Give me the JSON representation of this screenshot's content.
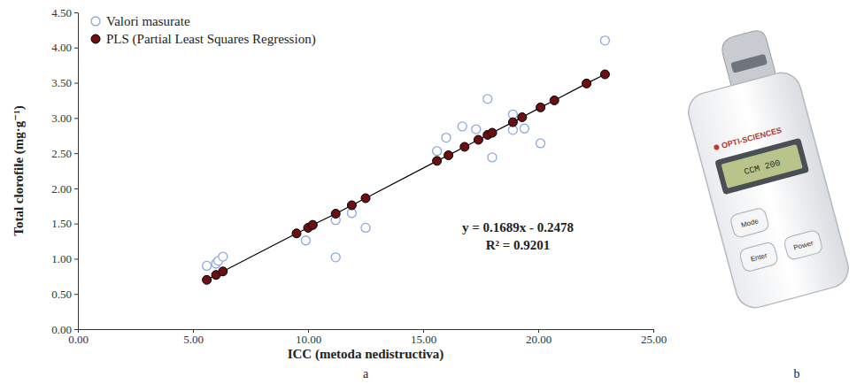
{
  "chart_data": {
    "type": "scatter",
    "x_label": "ICC (metoda nedistructiva)",
    "y_label": "Total clorofile (mg·g⁻¹)",
    "xlim": [
      0,
      25
    ],
    "xticks": [
      {
        "value": 0,
        "label": "0.00"
      },
      {
        "value": 5,
        "label": "5.00"
      },
      {
        "value": 10,
        "label": "10.00"
      },
      {
        "value": 15,
        "label": "15.00"
      },
      {
        "value": 20,
        "label": "20.00"
      },
      {
        "value": 25,
        "label": "25.00"
      }
    ],
    "ylim": [
      0,
      4.5
    ],
    "yticks": [
      {
        "value": 0,
        "label": "0.00"
      },
      {
        "value": 0.5,
        "label": "0.50"
      },
      {
        "value": 1,
        "label": "1.00"
      },
      {
        "value": 1.5,
        "label": "1.50"
      },
      {
        "value": 2,
        "label": "2.00"
      },
      {
        "value": 2.5,
        "label": "2.50"
      },
      {
        "value": 3,
        "label": "3.00"
      },
      {
        "value": 3.5,
        "label": "3.50"
      },
      {
        "value": 4,
        "label": "4.00"
      },
      {
        "value": 4.5,
        "label": "4.50"
      }
    ],
    "grid": false,
    "legend": "upper left",
    "annotations": [
      "y = 0.1689x - 0.2478",
      "R² = 0.9201"
    ],
    "series": [
      {
        "name": "Valori masurate",
        "color": "#8ea9db",
        "marker": "circle-open",
        "x": [
          5.6,
          6.0,
          6.1,
          6.3,
          9.9,
          10.2,
          11.2,
          11.2,
          11.9,
          12.5,
          15.6,
          16.0,
          16.7,
          17.3,
          17.8,
          18.0,
          18.9,
          18.9,
          19.4,
          20.1,
          22.9
        ],
        "values": [
          0.9,
          0.93,
          0.97,
          1.03,
          1.26,
          1.48,
          1.02,
          1.55,
          1.65,
          1.44,
          2.53,
          2.72,
          2.88,
          2.84,
          3.27,
          2.44,
          3.05,
          2.83,
          2.85,
          2.64,
          4.1
        ]
      },
      {
        "name": "PLS (Partial Least Squares Regression)",
        "color": "#6b0f12",
        "marker": "circle",
        "line_style": "solid",
        "x": [
          5.6,
          6.0,
          6.3,
          9.5,
          10.0,
          10.2,
          11.2,
          11.9,
          12.5,
          15.6,
          16.1,
          16.8,
          17.4,
          17.8,
          18.0,
          18.9,
          19.3,
          20.1,
          20.7,
          22.1,
          22.9
        ],
        "values": [
          0.7,
          0.77,
          0.82,
          1.36,
          1.44,
          1.48,
          1.64,
          1.76,
          1.86,
          2.39,
          2.47,
          2.59,
          2.69,
          2.76,
          2.79,
          2.94,
          3.01,
          3.15,
          3.25,
          3.49,
          3.62
        ]
      }
    ]
  },
  "panel_labels": [
    "a",
    "b"
  ],
  "device": {
    "brand": "OPTI-SCIENCES",
    "model": "CCM 200",
    "buttons": [
      "Mode",
      "Enter",
      "Power"
    ]
  }
}
